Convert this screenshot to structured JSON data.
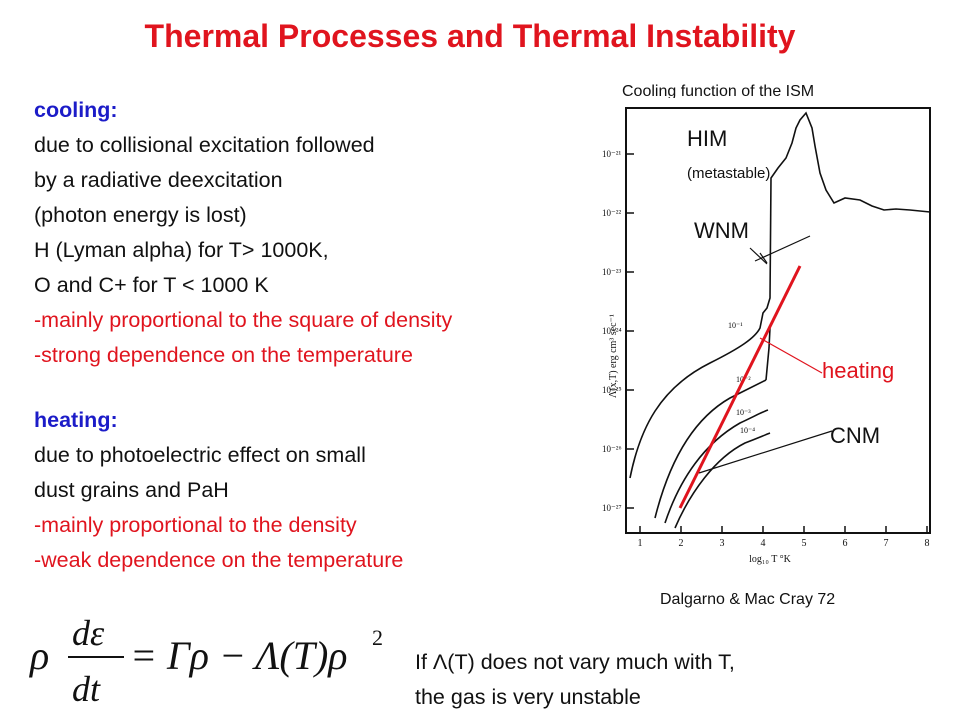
{
  "title": "Thermal Processes and Thermal Instability",
  "cooling": {
    "heading": "cooling:",
    "lines": [
      "due to collisional excitation followed",
      "by a radiative deexcitation",
      "(photon energy is lost)",
      "H (Lyman alpha) for T> 1000K,",
      "O and C+ for T < 1000 K"
    ],
    "red_lines": [
      "-mainly proportional to the square of  density",
      "-strong dependence on the temperature"
    ]
  },
  "heating": {
    "heading": "heating:",
    "lines": [
      "due to photoelectric effect on small",
      "dust grains and PaH"
    ],
    "red_lines": [
      "-mainly proportional to the density",
      "-weak dependence on the temperature"
    ]
  },
  "figure": {
    "caption_top": "Cooling function of the ISM",
    "caption_bottom": "Dalgarno & Mac Cray 72",
    "labels": {
      "him": "HIM",
      "metastable": "(metastable)",
      "wnm": "WNM",
      "heating": "heating",
      "cnm": "CNM"
    },
    "y_tick_labels": [
      "10⁻²¹",
      "10⁻²²",
      "10⁻²³",
      "10⁻²⁴",
      "10⁻²⁵",
      "10⁻²⁶",
      "10⁻²⁷"
    ],
    "x_tick_labels": [
      "1",
      "2",
      "3",
      "4",
      "5",
      "6",
      "7",
      "8"
    ],
    "xlabel": "log₁₀ T °K",
    "ylabel": "Λ(x,T) erg cm³ sec⁻¹",
    "curve_labels": [
      "10⁻¹",
      "10⁻²",
      "10⁻³",
      "10⁻⁴"
    ],
    "colors": {
      "heating_line": "#e0141e",
      "pointer_heating": "#e0141e",
      "pointer_other": "#111111"
    }
  },
  "equation": {
    "rho": "ρ",
    "numerator": "dε",
    "denominator": "dt",
    "rhs": "= Γρ − Λ(T)ρ",
    "power": "2"
  },
  "condition": {
    "line1": "If Λ(T) does not vary much with T,",
    "line2": " the gas is  very unstable"
  }
}
